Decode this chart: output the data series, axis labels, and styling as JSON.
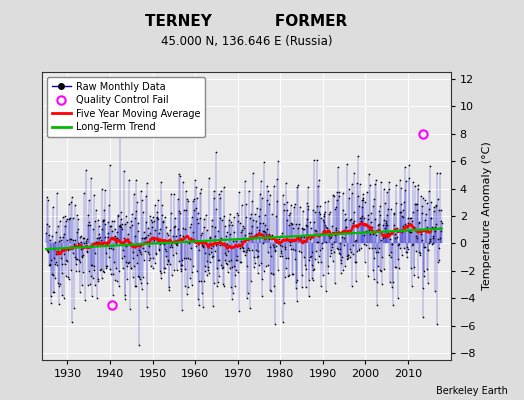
{
  "title1": "TERNEY            FORMER",
  "title2": "45.000 N, 136.646 E (Russia)",
  "ylabel": "Temperature Anomaly (°C)",
  "xlabel_credit": "Berkeley Earth",
  "xlim": [
    1924,
    2020
  ],
  "ylim": [
    -8.5,
    12.5
  ],
  "yticks": [
    -8,
    -6,
    -4,
    -2,
    0,
    2,
    4,
    6,
    8,
    10,
    12
  ],
  "xticks": [
    1930,
    1940,
    1950,
    1960,
    1970,
    1980,
    1990,
    2000,
    2010
  ],
  "bg_color": "#dddddd",
  "plot_bg_color": "#ebebeb",
  "raw_line_color": "#0000cc",
  "raw_marker_color": "#000000",
  "ma_color": "#ff0000",
  "trend_color": "#00bb00",
  "qc_fail_color": "#ff00ff",
  "qc_fail_points": [
    [
      1940.5,
      -4.5
    ],
    [
      2013.5,
      8.0
    ]
  ],
  "seed": 42,
  "n_years_start": 1925,
  "n_years_end": 2018,
  "noise_std": 2.2,
  "trend_slope": 0.012,
  "trend_intercept": -0.3
}
